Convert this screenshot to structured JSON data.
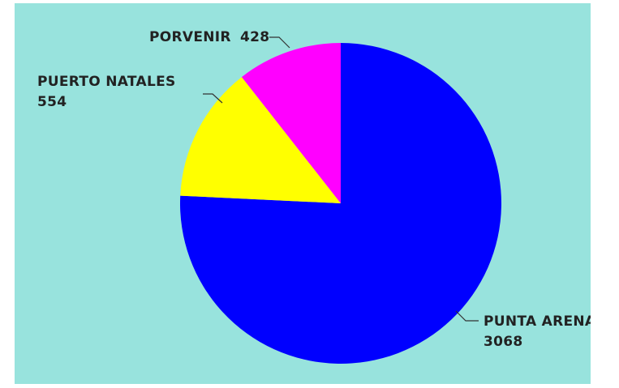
{
  "chart_data": {
    "type": "pie",
    "title": "",
    "background": "#98e3dd",
    "start_angle_deg": 0,
    "direction": "clockwise",
    "slices": [
      {
        "label": "PUNTA ARENAS",
        "value": 3068,
        "value_text": "3068",
        "color": "#0000ff"
      },
      {
        "label": "PUERTO NATALES",
        "value": 554,
        "value_text": "554",
        "color": "#ffff00"
      },
      {
        "label": "PORVENIR",
        "value": 428,
        "value_text": "428",
        "color": "#ff00ff"
      }
    ],
    "legend": "none"
  }
}
